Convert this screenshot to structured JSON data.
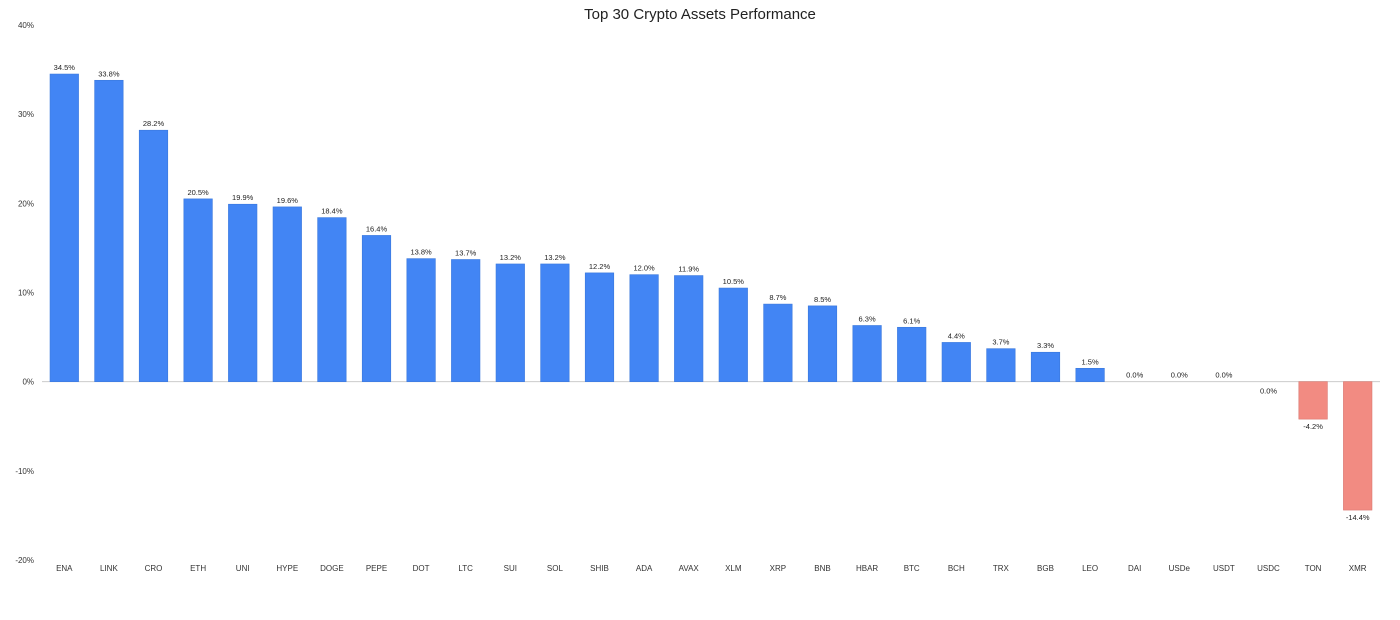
{
  "chart_data": {
    "type": "bar",
    "title": "Top 30 Crypto Assets Performance",
    "xlabel": "",
    "ylabel": "",
    "ylim": [
      -20,
      40
    ],
    "yticks": [
      40,
      30,
      20,
      10,
      0,
      -10,
      -20
    ],
    "ytick_labels": [
      "40%",
      "30%",
      "20%",
      "10%",
      "0%",
      "-10%",
      "-20%"
    ],
    "grid": false,
    "legend": "none",
    "colors": {
      "positive": "#4285f4",
      "negative": "#f28b82",
      "zero_line": "#cccccc"
    },
    "categories": [
      "ENA",
      "LINK",
      "CRO",
      "ETH",
      "UNI",
      "HYPE",
      "DOGE",
      "PEPE",
      "DOT",
      "LTC",
      "SUI",
      "SOL",
      "SHIB",
      "ADA",
      "AVAX",
      "XLM",
      "XRP",
      "BNB",
      "HBAR",
      "BTC",
      "BCH",
      "TRX",
      "BGB",
      "LEO",
      "DAI",
      "USDe",
      "USDT",
      "USDC",
      "TON",
      "XMR"
    ],
    "values": [
      34.5,
      33.8,
      28.2,
      20.5,
      19.9,
      19.6,
      18.4,
      16.4,
      13.8,
      13.7,
      13.2,
      13.2,
      12.2,
      12.0,
      11.9,
      10.5,
      8.7,
      8.5,
      6.3,
      6.1,
      4.4,
      3.7,
      3.3,
      1.5,
      0.0,
      0.0,
      0.0,
      0.0,
      -4.2,
      -14.4
    ],
    "data_labels": [
      "34.5%",
      "33.8%",
      "28.2%",
      "20.5%",
      "19.9%",
      "19.6%",
      "18.4%",
      "16.4%",
      "13.8%",
      "13.7%",
      "13.2%",
      "13.2%",
      "12.2%",
      "12.0%",
      "11.9%",
      "10.5%",
      "8.7%",
      "8.5%",
      "6.3%",
      "6.1%",
      "4.4%",
      "3.7%",
      "3.3%",
      "1.5%",
      "0.0%",
      "0.0%",
      "0.0%",
      "0.0%",
      "-4.2%",
      "-14.4%"
    ]
  }
}
